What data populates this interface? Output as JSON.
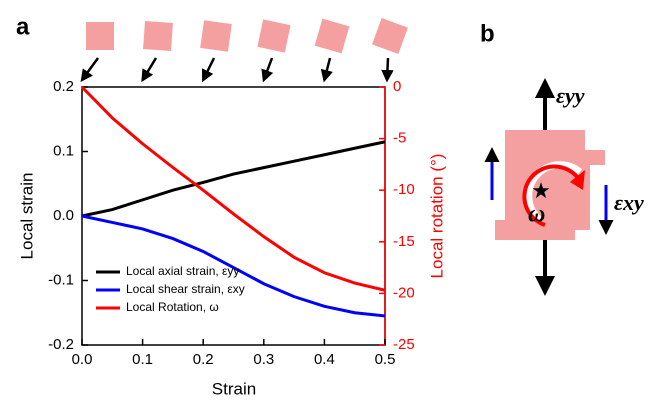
{
  "chart_data": {
    "type": "line",
    "panel_labels": [
      "a",
      "b"
    ],
    "xlabel": "Strain",
    "ylabel": "Local strain",
    "y2label": "Local rotation (°)",
    "x": [
      0,
      0.05,
      0.1,
      0.15,
      0.2,
      0.25,
      0.3,
      0.35,
      0.4,
      0.45,
      0.5
    ],
    "series": [
      {
        "name": "Local axial strain, εyy",
        "color": "#000000",
        "values": [
          0,
          0.01,
          0.025,
          0.04,
          0.052,
          0.065,
          0.075,
          0.085,
          0.095,
          0.105,
          0.115
        ]
      },
      {
        "name": "Local shear strain, εxy",
        "color": "#0000ff",
        "values": [
          0,
          -0.01,
          -0.02,
          -0.035,
          -0.055,
          -0.08,
          -0.105,
          -0.125,
          -0.14,
          -0.15,
          -0.155
        ]
      },
      {
        "name": "Local Rotation, ω",
        "color": "#ff0000",
        "axis": "y2",
        "values": [
          0,
          -3,
          -5.5,
          -7.8,
          -10,
          -12.3,
          -14.5,
          -16.5,
          -18,
          -19,
          -19.7
        ]
      }
    ],
    "xlim": [
      0,
      0.5
    ],
    "xticks": [
      {
        "value": 0,
        "label": "0.0"
      },
      0.1,
      0.2,
      0.3,
      0.4,
      0.5
    ],
    "ylim": [
      -0.2,
      0.2
    ],
    "yticks": [
      -0.2,
      -0.1,
      {
        "value": 0,
        "label": "0.0"
      },
      0.1,
      0.2
    ],
    "y2lim": [
      -25,
      0
    ],
    "y2ticks": [
      -25,
      -20,
      -15,
      -10,
      -5,
      0
    ],
    "y2color": "#ff0000",
    "legend": "lower left",
    "diagram_labels": [
      "εyy",
      "εxy",
      "ω"
    ]
  }
}
